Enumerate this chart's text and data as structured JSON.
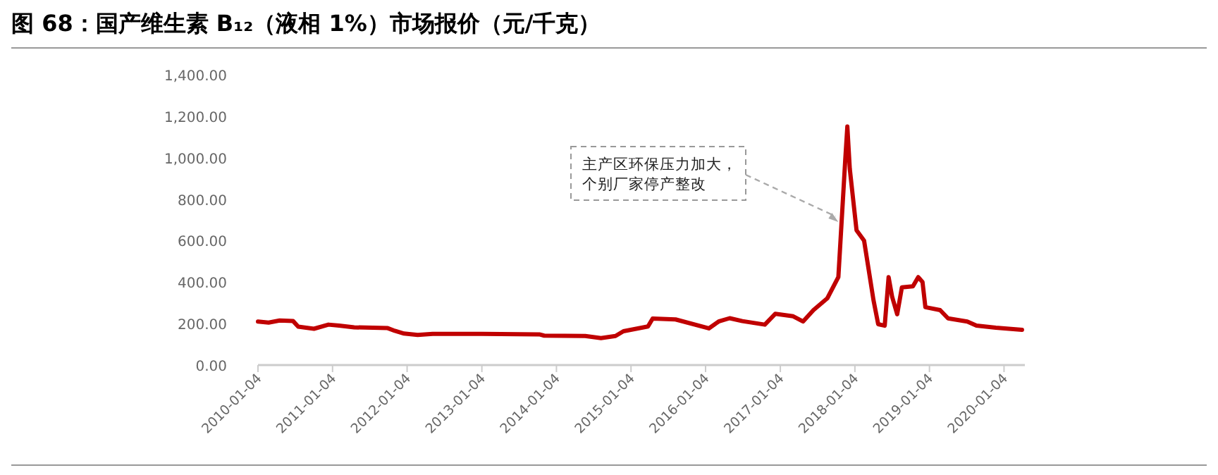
{
  "chart_data": {
    "type": "line",
    "title": "图 68：国产维生素 B₁₂（液相 1%）市场报价（元/千克）",
    "x": [
      "2010-01-04",
      "2010-02-25",
      "2010-04-20",
      "2010-06-25",
      "2010-07-20",
      "2010-10-05",
      "2010-12-15",
      "2011-02-05",
      "2011-04-20",
      "2011-10-01",
      "2011-11-05",
      "2011-12-20",
      "2012-02-25",
      "2012-05-08",
      "2013-01-04",
      "2013-10-12",
      "2013-11-05",
      "2014-05-25",
      "2014-08-10",
      "2014-10-20",
      "2014-11-28",
      "2015-03-28",
      "2015-04-20",
      "2015-08-10",
      "2016-01-20",
      "2016-03-08",
      "2016-05-01",
      "2016-07-02",
      "2016-10-20",
      "2016-12-10",
      "2017-03-08",
      "2017-04-25",
      "2017-06-15",
      "2017-08-22",
      "2017-10-15",
      "2017-11-18",
      "2017-11-28",
      "2017-12-10",
      "2018-01-12",
      "2018-02-18",
      "2018-04-05",
      "2018-04-28",
      "2018-05-30",
      "2018-06-18",
      "2018-07-05",
      "2018-07-30",
      "2018-08-22",
      "2018-10-15",
      "2018-11-10",
      "2018-12-01",
      "2018-12-15",
      "2019-02-25",
      "2019-04-05",
      "2019-07-08",
      "2019-08-22",
      "2019-11-25",
      "2020-04-01"
    ],
    "series": [
      {
        "color": "#c00000",
        "values": [
          210,
          205,
          215,
          212,
          185,
          175,
          195,
          190,
          182,
          178,
          165,
          152,
          145,
          150,
          150,
          148,
          142,
          140,
          130,
          140,
          163,
          186,
          224,
          220,
          177,
          210,
          226,
          212,
          195,
          247,
          235,
          210,
          265,
          322,
          424,
          993,
          1150,
          946,
          650,
          600,
          313,
          197,
          190,
          424,
          330,
          245,
          375,
          380,
          424,
          400,
          279,
          265,
          225,
          210,
          190,
          180,
          170
        ]
      }
    ],
    "xlim": [
      "2010-01-04",
      "2020-04-15"
    ],
    "xticks": [
      {
        "value": "2010-01-04",
        "label": "2010-01-04"
      },
      {
        "value": "2011-01-04",
        "label": "2011-01-04"
      },
      {
        "value": "2012-01-04",
        "label": "2012-01-04"
      },
      {
        "value": "2013-01-04",
        "label": "2013-01-04"
      },
      {
        "value": "2014-01-04",
        "label": "2014-01-04"
      },
      {
        "value": "2015-01-04",
        "label": "2015-01-04"
      },
      {
        "value": "2016-01-04",
        "label": "2016-01-04"
      },
      {
        "value": "2017-01-04",
        "label": "2017-01-04"
      },
      {
        "value": "2018-01-04",
        "label": "2018-01-04"
      },
      {
        "value": "2019-01-04",
        "label": "2019-01-04"
      },
      {
        "value": "2020-01-04",
        "label": "2020-01-04"
      }
    ],
    "ylim": [
      0,
      1400
    ],
    "yticks": [
      {
        "value": 0,
        "label": "0.00"
      },
      {
        "value": 200,
        "label": "200.00"
      },
      {
        "value": 400,
        "label": "400.00"
      },
      {
        "value": 600,
        "label": "600.00"
      },
      {
        "value": 800,
        "label": "800.00"
      },
      {
        "value": 1000,
        "label": "1,000.00"
      },
      {
        "value": 1200,
        "label": "1,200.00"
      },
      {
        "value": 1400,
        "label": "1,400.00"
      }
    ],
    "grid": false,
    "marker": "none",
    "line_style": "solid",
    "annotations": [
      {
        "text": "主产区环保压力加大，个别厂家停产整改",
        "x": "2017-10-15",
        "y": 690
      }
    ]
  }
}
